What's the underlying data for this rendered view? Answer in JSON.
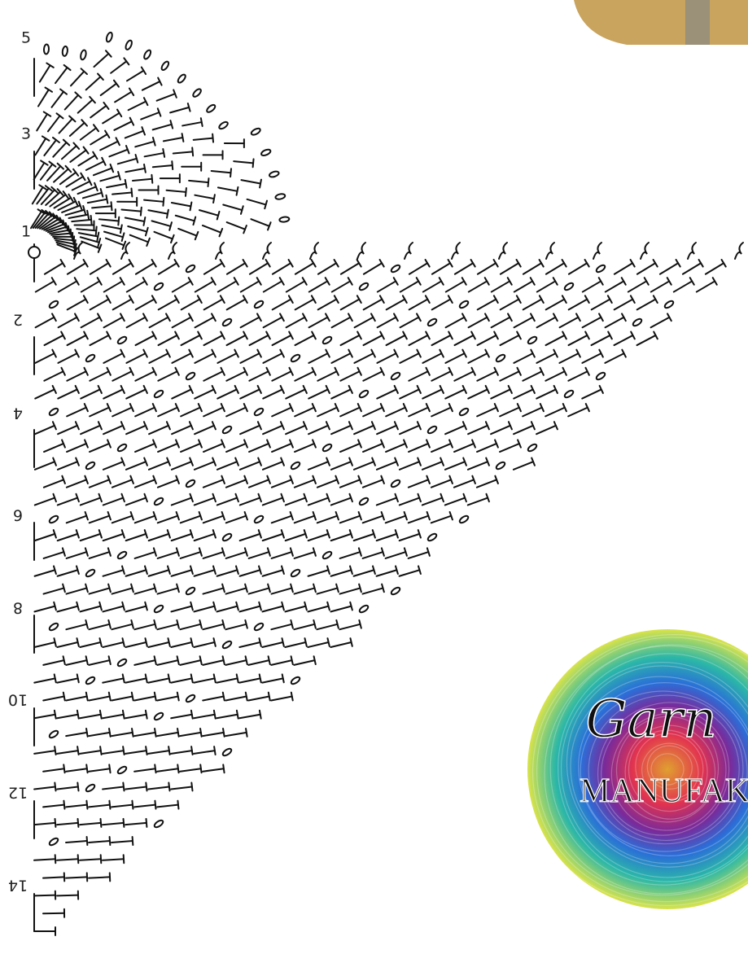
{
  "row_numbers": [
    "5",
    "3",
    "1",
    "2",
    "4",
    "6",
    "8",
    "10",
    "12",
    "14"
  ],
  "logo": {
    "script": "Garn",
    "brand": "MANUFAK"
  }
}
